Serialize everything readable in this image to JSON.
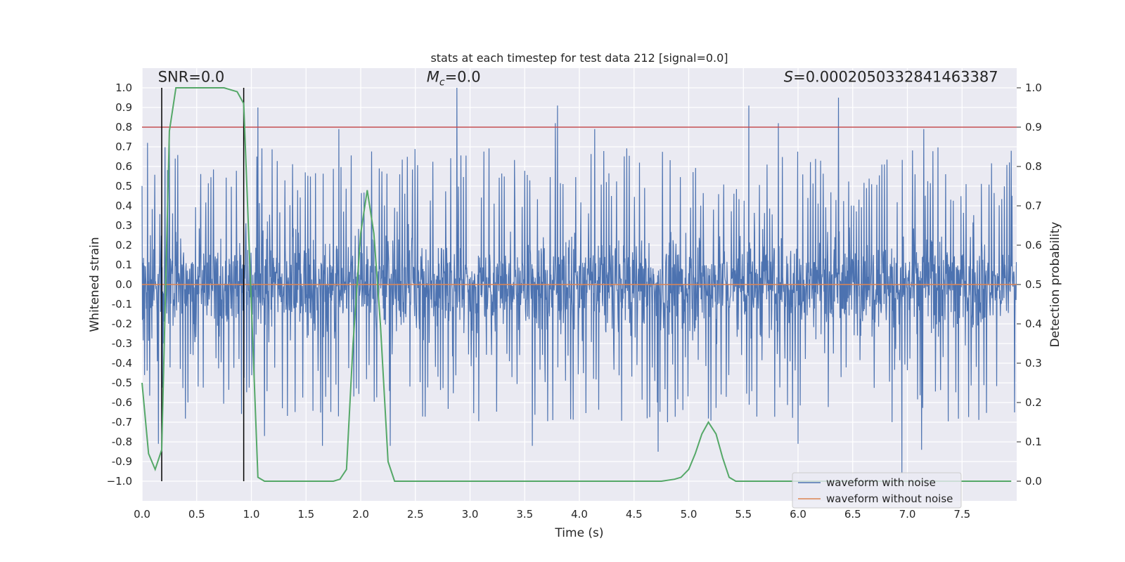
{
  "chart_data": {
    "type": "line",
    "title": "stats at each timestep for test data 212 [signal=0.0]",
    "xlabel": "Time (s)",
    "ylabel": "Whitened strain",
    "y2label": "Detection probability",
    "xlim": [
      0.0,
      8.0
    ],
    "ylim": [
      -1.1,
      1.1
    ],
    "y2lim": [
      -0.05,
      1.05
    ],
    "xticks": [
      "0.0",
      "0.5",
      "1.0",
      "1.5",
      "2.0",
      "2.5",
      "3.0",
      "3.5",
      "4.0",
      "4.5",
      "5.0",
      "5.5",
      "6.0",
      "6.5",
      "7.0",
      "7.5"
    ],
    "yticks": [
      "1.0",
      "0.9",
      "0.8",
      "0.7",
      "0.6",
      "0.5",
      "0.4",
      "0.3",
      "0.2",
      "0.1",
      "0.0",
      "-0.1",
      "-0.2",
      "-0.3",
      "-0.4",
      "-0.5",
      "-0.6",
      "-0.7",
      "-0.8",
      "-0.9",
      "−1.0"
    ],
    "y2ticks": [
      "1.0",
      "0.9",
      "0.8",
      "0.7",
      "0.6",
      "0.5",
      "0.4",
      "0.3",
      "0.2",
      "0.1",
      "0.0"
    ],
    "grid": true,
    "threshold": {
      "value": 0.9,
      "axis": "y2",
      "color": "#c44e52"
    },
    "window_markers": {
      "x": [
        0.18,
        0.93
      ],
      "ymin": -1.0,
      "ymax": 1.0,
      "color": "#000000"
    },
    "series": [
      {
        "name": "waveform with noise",
        "color": "#4c72b0",
        "description_values": "dense whitened noise, typical range -0.45..0.45, peaks",
        "peaks": [
          {
            "x": 0.05,
            "y": 0.72
          },
          {
            "x": 0.15,
            "y": 0.75
          },
          {
            "x": 0.25,
            "y": 0.75
          },
          {
            "x": 1.06,
            "y": 0.9
          },
          {
            "x": 1.8,
            "y": 0.79
          },
          {
            "x": 2.88,
            "y": 1.0
          },
          {
            "x": 3.78,
            "y": 0.82
          },
          {
            "x": 3.8,
            "y": 0.91
          },
          {
            "x": 4.14,
            "y": 0.79
          },
          {
            "x": 5.55,
            "y": 0.91
          },
          {
            "x": 5.82,
            "y": 0.82
          },
          {
            "x": 6.37,
            "y": 0.95
          },
          {
            "x": 7.15,
            "y": 0.79
          },
          {
            "x": 7.95,
            "y": 0.68
          },
          {
            "x": 0.15,
            "y": -0.81
          },
          {
            "x": 1.12,
            "y": -0.77
          },
          {
            "x": 1.65,
            "y": -0.82
          },
          {
            "x": 2.27,
            "y": -0.82
          },
          {
            "x": 3.57,
            "y": -0.82
          },
          {
            "x": 4.72,
            "y": -0.85
          },
          {
            "x": 6.0,
            "y": -0.81
          },
          {
            "x": 6.95,
            "y": -0.96
          },
          {
            "x": 7.13,
            "y": -0.84
          }
        ]
      },
      {
        "name": "waveform without noise",
        "color": "#dd8452",
        "x": [
          0.0,
          8.0
        ],
        "y": [
          0.0,
          0.0
        ]
      },
      {
        "name": "detection probability",
        "axis": "y2",
        "color": "#55a868",
        "x": [
          0.0,
          0.06,
          0.12,
          0.18,
          0.25,
          0.31,
          0.37,
          0.5,
          0.62,
          0.75,
          0.87,
          0.93,
          1.0,
          1.06,
          1.12,
          1.25,
          1.5,
          1.75,
          1.81,
          1.87,
          1.93,
          2.0,
          2.06,
          2.12,
          2.18,
          2.25,
          2.31,
          2.37,
          2.5,
          3.0,
          3.5,
          4.0,
          4.5,
          4.75,
          4.87,
          4.93,
          5.0,
          5.06,
          5.12,
          5.18,
          5.25,
          5.31,
          5.37,
          5.43,
          5.5,
          6.0,
          6.5,
          7.0,
          7.5,
          7.95
        ],
        "y": [
          0.25,
          0.07,
          0.03,
          0.08,
          0.89,
          1.0,
          1.0,
          1.0,
          1.0,
          1.0,
          0.99,
          0.96,
          0.45,
          0.01,
          0.0,
          0.0,
          0.0,
          0.0,
          0.005,
          0.03,
          0.35,
          0.63,
          0.74,
          0.63,
          0.4,
          0.05,
          0.0,
          0.0,
          0.0,
          0.0,
          0.0,
          0.0,
          0.0,
          0.0,
          0.005,
          0.01,
          0.03,
          0.07,
          0.12,
          0.15,
          0.12,
          0.06,
          0.01,
          0.0,
          0.0,
          0.0,
          0.0,
          0.0,
          0.0,
          0.0
        ]
      }
    ],
    "annotations": [
      {
        "text": "SNR=0.0",
        "x": 0.45,
        "y": 1.03
      },
      {
        "text_symbol": "M",
        "text_sub": "c",
        "text_rest": "=0.0",
        "x": 2.85,
        "y": 1.03
      },
      {
        "text_symbol": "S",
        "text_rest": "=0.0002050332841463387",
        "x": 6.85,
        "y": 1.03
      }
    ],
    "legend": {
      "location": "lower right",
      "entries": [
        "waveform with noise",
        "waveform without noise"
      ]
    }
  }
}
